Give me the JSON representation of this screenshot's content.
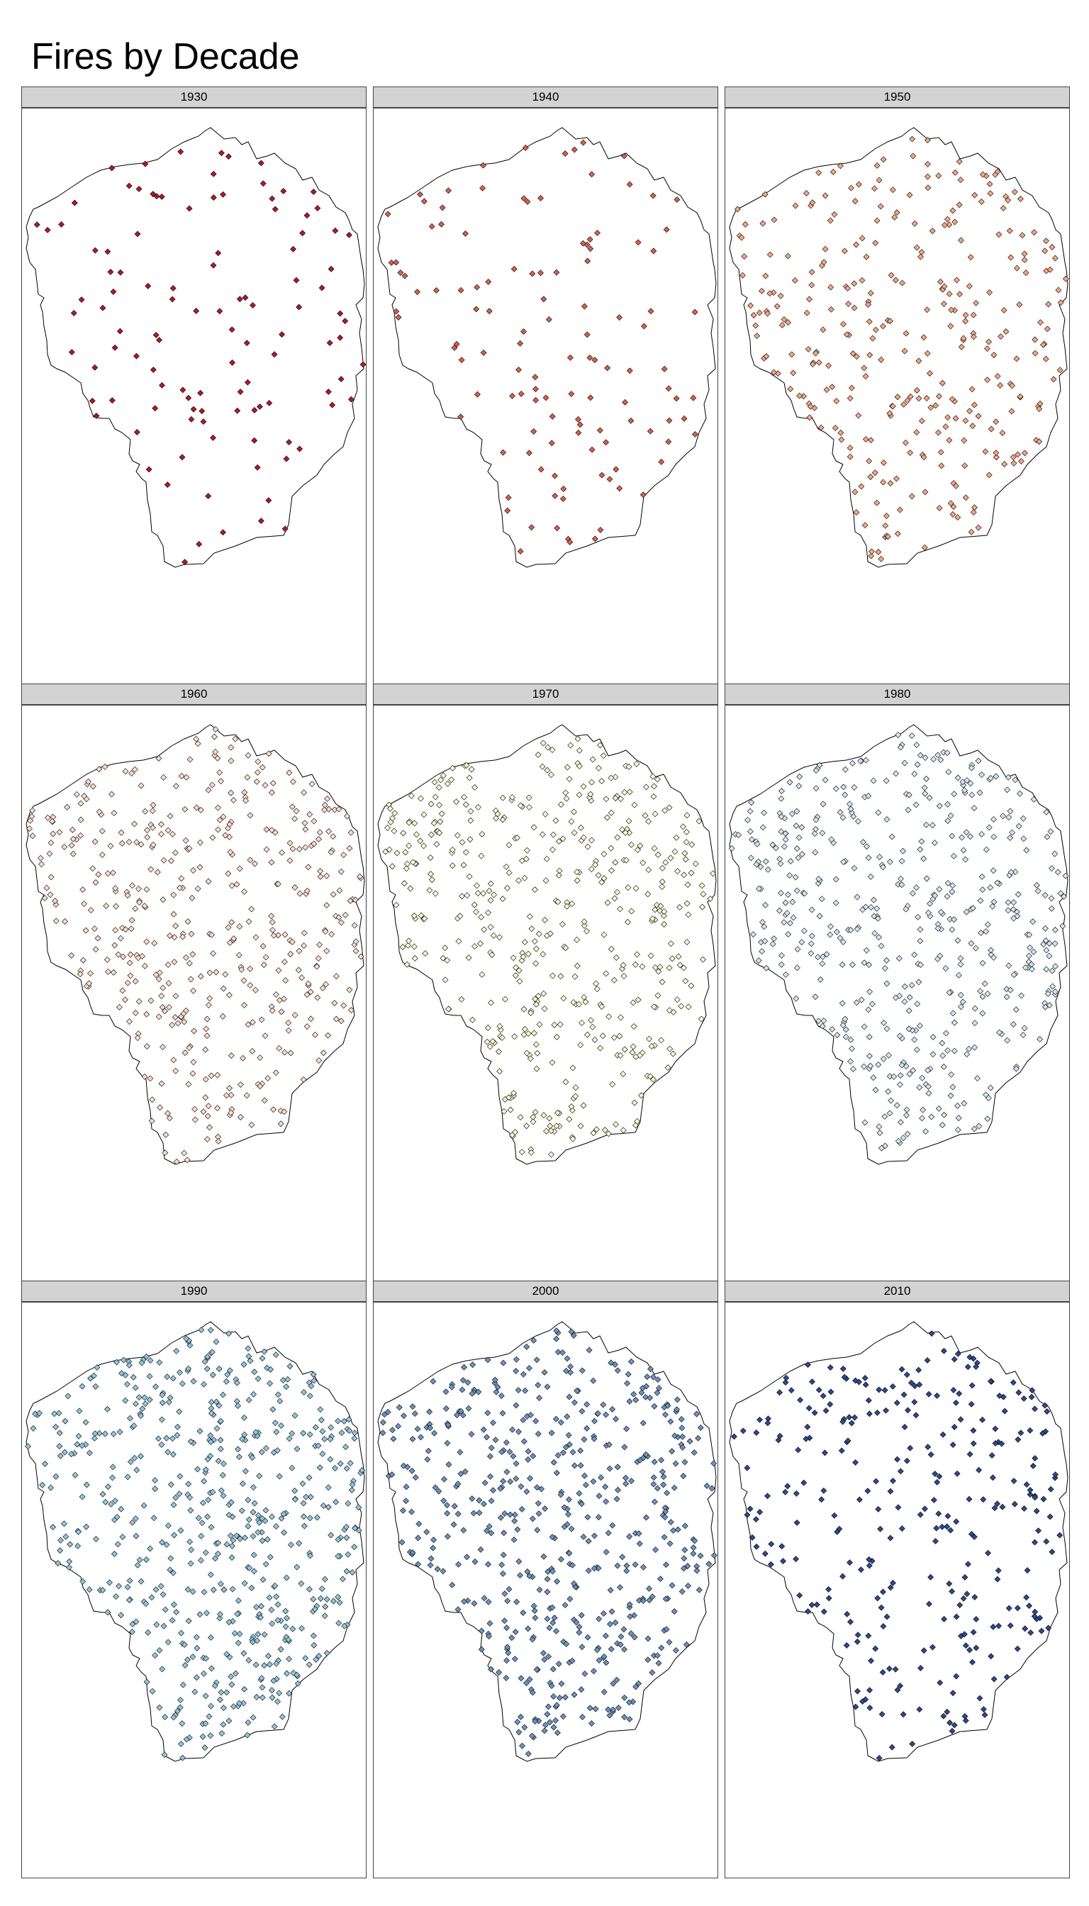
{
  "title": "Fires by Decade",
  "map": {
    "boundary_color": "#000000",
    "point_stroke": "#000000",
    "panels": [
      {
        "decade": "1930",
        "color": "#b2182b",
        "count": 110,
        "seed": 11
      },
      {
        "decade": "1940",
        "color": "#d6604d",
        "count": 120,
        "seed": 23
      },
      {
        "decade": "1950",
        "color": "#f4a582",
        "count": 330,
        "seed": 37
      },
      {
        "decade": "1960",
        "color": "#fddbc7",
        "count": 480,
        "seed": 41
      },
      {
        "decade": "1970",
        "color": "#f7f7d0",
        "count": 500,
        "seed": 53
      },
      {
        "decade": "1980",
        "color": "#d1e5f0",
        "count": 520,
        "seed": 67
      },
      {
        "decade": "1990",
        "color": "#92c5de",
        "count": 600,
        "seed": 71
      },
      {
        "decade": "2000",
        "color": "#6b94c0",
        "count": 560,
        "seed": 83
      },
      {
        "decade": "2010",
        "color": "#2c4a8c",
        "count": 300,
        "seed": 97
      }
    ]
  }
}
